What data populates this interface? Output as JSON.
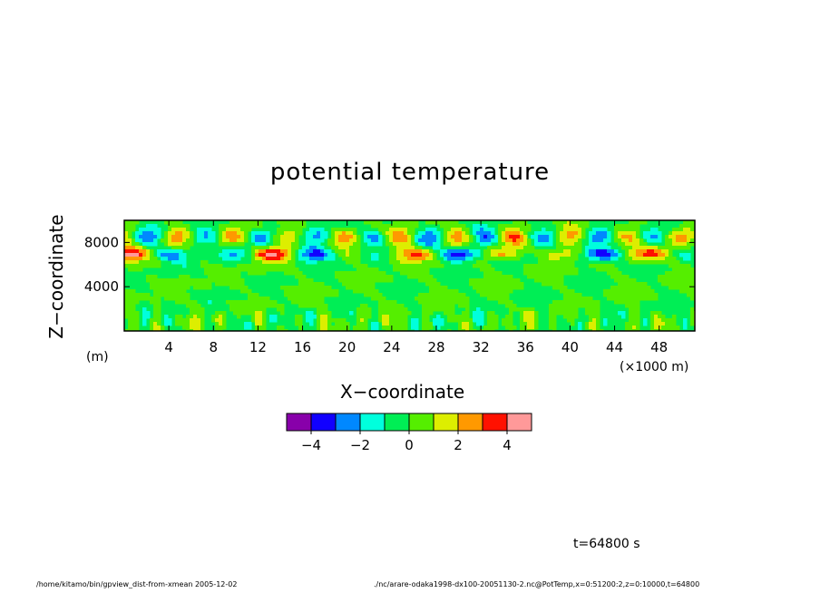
{
  "chart_data": {
    "type": "heatmap",
    "title": "potential temperature",
    "xlabel": "X−coordinate",
    "ylabel": "Z−coordinate",
    "x_unit": "(×1000 m)",
    "y_unit": "(m)",
    "xlim": [
      0,
      51.2
    ],
    "ylim": [
      0,
      10000
    ],
    "x_ticks": [
      4,
      8,
      12,
      16,
      20,
      24,
      28,
      32,
      36,
      40,
      44,
      48
    ],
    "y_ticks": [
      4000,
      8000
    ],
    "colorbar": {
      "bounds": [
        -5,
        -4,
        -3,
        -2,
        -1,
        0,
        1,
        2,
        3,
        4,
        5
      ],
      "tick_values": [
        -4,
        -2,
        0,
        2,
        4
      ],
      "tick_labels": [
        "−4",
        "−2",
        "0",
        "2",
        "4"
      ],
      "colors": [
        "#8800aa",
        "#1100ff",
        "#0088ff",
        "#00ffdd",
        "#00ee55",
        "#55ee00",
        "#ddee00",
        "#ff9900",
        "#ff1100",
        "#ff9999"
      ]
    }
  },
  "annotations": {
    "time": "t=64800  s",
    "footer_left": "/home/kitamo/bin/gpview_dist-from-xmean   2005-12-02",
    "footer_right": "./nc/arare-odaka1998-dx100-20051130-2.nc@PotTemp,x=0:51200:2,z=0:10000,t=64800"
  }
}
